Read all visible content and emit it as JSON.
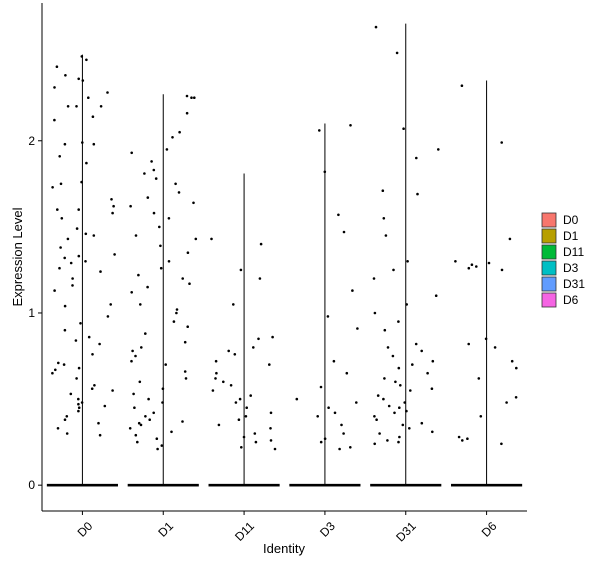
{
  "chart_data": {
    "type": "violin",
    "title": "",
    "xlabel": "Identity",
    "ylabel": "Expression Level",
    "ylim": [
      -0.15,
      2.8
    ],
    "yticks": [
      0,
      1,
      2
    ],
    "categories": [
      "D0",
      "D1",
      "D11",
      "D3",
      "D31",
      "D6"
    ],
    "violin_max": [
      2.5,
      2.27,
      1.81,
      2.1,
      2.68,
      2.35
    ],
    "legend": {
      "title": "",
      "position": "right",
      "entries": [
        {
          "label": "D0",
          "color": "#F8766D"
        },
        {
          "label": "D1",
          "color": "#B79F00"
        },
        {
          "label": "D11",
          "color": "#00BA38"
        },
        {
          "label": "D3",
          "color": "#00BFC4"
        },
        {
          "label": "D31",
          "color": "#619CFF"
        },
        {
          "label": "D6",
          "color": "#F564E3"
        }
      ]
    },
    "points": {
      "D0": [
        2.49,
        2.47,
        2.43,
        2.38,
        2.36,
        2.35,
        2.31,
        2.28,
        2.25,
        2.2,
        2.2,
        2.2,
        2.14,
        2.12,
        1.99,
        1.98,
        1.98,
        1.91,
        1.87,
        1.76,
        1.75,
        1.73,
        1.66,
        1.62,
        1.6,
        1.6,
        1.58,
        1.55,
        1.49,
        1.46,
        1.45,
        1.43,
        1.38,
        1.34,
        1.33,
        1.32,
        1.3,
        1.29,
        1.26,
        1.24,
        1.2,
        1.16,
        1.13,
        1.05,
        1.04,
        0.98,
        0.94,
        0.9,
        0.86,
        0.84,
        0.82,
        0.76,
        0.71,
        0.7,
        0.68,
        0.67,
        0.65,
        0.62,
        0.58,
        0.56,
        0.55,
        0.53,
        0.5,
        0.48,
        0.47,
        0.46,
        0.45,
        0.43,
        0.4,
        0.38,
        0.36,
        0.33,
        0.3,
        0.29
      ],
      "D1": [
        2.26,
        2.25,
        2.25,
        2.16,
        2.05,
        2.02,
        1.95,
        1.93,
        1.88,
        1.83,
        1.81,
        1.78,
        1.75,
        1.7,
        1.67,
        1.64,
        1.62,
        1.58,
        1.55,
        1.5,
        1.45,
        1.43,
        1.39,
        1.35,
        1.3,
        1.26,
        1.22,
        1.2,
        1.17,
        1.15,
        1.12,
        1.05,
        1.02,
        1.0,
        0.95,
        0.92,
        0.88,
        0.83,
        0.8,
        0.78,
        0.75,
        0.72,
        0.7,
        0.66,
        0.62,
        0.6,
        0.56,
        0.53,
        0.5,
        0.48,
        0.45,
        0.42,
        0.4,
        0.38,
        0.37,
        0.36,
        0.35,
        0.33,
        0.31,
        0.29,
        0.27,
        0.25,
        0.23,
        0.21
      ],
      "D11": [
        1.43,
        1.4,
        1.25,
        1.2,
        1.05,
        0.86,
        0.85,
        0.8,
        0.78,
        0.76,
        0.72,
        0.7,
        0.65,
        0.62,
        0.6,
        0.58,
        0.55,
        0.52,
        0.5,
        0.48,
        0.45,
        0.42,
        0.4,
        0.38,
        0.35,
        0.33,
        0.3,
        0.28,
        0.26,
        0.25,
        0.22,
        0.21
      ],
      "D3": [
        2.09,
        2.06,
        1.82,
        1.57,
        1.47,
        1.13,
        0.98,
        0.91,
        0.72,
        0.65,
        0.57,
        0.5,
        0.48,
        0.45,
        0.42,
        0.4,
        0.35,
        0.3,
        0.27,
        0.25,
        0.22,
        0.21
      ],
      "D31": [
        2.66,
        2.51,
        2.07,
        1.95,
        1.9,
        1.71,
        1.69,
        1.55,
        1.45,
        1.3,
        1.25,
        1.2,
        1.1,
        1.05,
        1.0,
        0.95,
        0.9,
        0.82,
        0.8,
        0.78,
        0.75,
        0.72,
        0.7,
        0.68,
        0.65,
        0.62,
        0.6,
        0.58,
        0.56,
        0.55,
        0.52,
        0.5,
        0.48,
        0.46,
        0.45,
        0.43,
        0.42,
        0.4,
        0.38,
        0.36,
        0.35,
        0.33,
        0.31,
        0.3,
        0.28,
        0.26,
        0.25,
        0.24
      ],
      "D6": [
        2.32,
        1.99,
        1.43,
        1.3,
        1.29,
        1.28,
        1.27,
        1.26,
        1.25,
        0.85,
        0.82,
        0.8,
        0.72,
        0.68,
        0.62,
        0.51,
        0.48,
        0.4,
        0.28,
        0.27,
        0.26,
        0.24
      ]
    }
  }
}
